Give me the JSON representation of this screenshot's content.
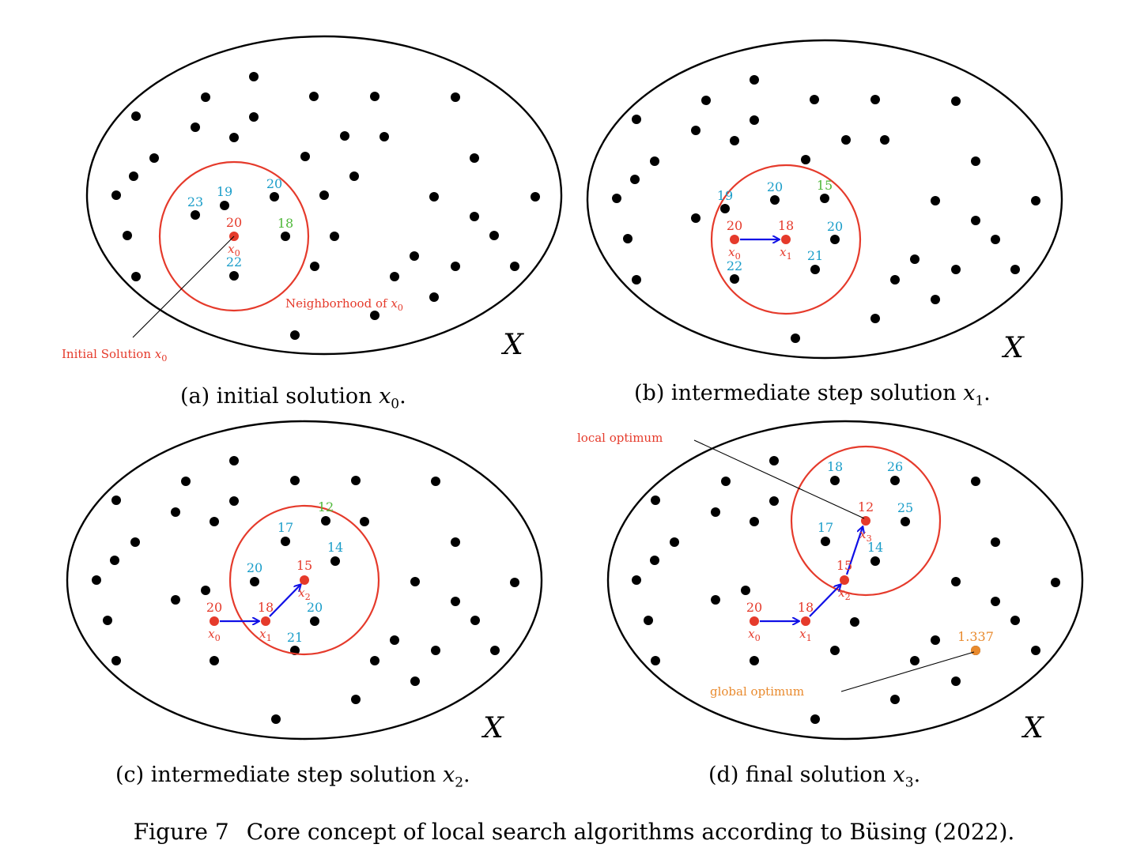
{
  "colors": {
    "dot": "#000000",
    "current": "#e53a2b",
    "neighbor_value": "#1a9dc9",
    "best_neighbor_value": "#4fb83a",
    "move_arrow": "#1010e6",
    "global_optimum": "#e98a2d",
    "outline": "#000000"
  },
  "panels": [
    {
      "id": "a",
      "space_label": "X",
      "caption": {
        "text": "(a) initial solution ",
        "var": "x",
        "sub": "0",
        "end": "."
      },
      "neighborhood_label": "Neighborhood of x0",
      "annotation": "Initial Solution x0",
      "current": {
        "value": "20",
        "name": "x0"
      },
      "neighbor_values": [
        "23",
        "19",
        "20",
        "18",
        "22"
      ],
      "best_neighbor": "18"
    },
    {
      "id": "b",
      "space_label": "X",
      "caption": {
        "text": "(b) intermediate step solution ",
        "var": "x",
        "sub": "1",
        "end": "."
      },
      "path": [
        {
          "value": "20",
          "name": "x0"
        },
        {
          "value": "18",
          "name": "x1"
        }
      ],
      "neighbor_values": [
        "19",
        "20",
        "15",
        "20",
        "22",
        "21"
      ],
      "best_neighbor": "15"
    },
    {
      "id": "c",
      "space_label": "X",
      "caption": {
        "text": "(c) intermediate step solution ",
        "var": "x",
        "sub": "2",
        "end": "."
      },
      "path": [
        {
          "value": "20",
          "name": "x0"
        },
        {
          "value": "18",
          "name": "x1"
        },
        {
          "value": "15",
          "name": "x2"
        }
      ],
      "neighbor_values": [
        "12",
        "17",
        "14",
        "20",
        "20",
        "21"
      ],
      "best_neighbor": "12"
    },
    {
      "id": "d",
      "space_label": "X",
      "caption": {
        "text": "(d) final solution ",
        "var": "x",
        "sub": "3",
        "end": "."
      },
      "path": [
        {
          "value": "20",
          "name": "x0"
        },
        {
          "value": "18",
          "name": "x1"
        },
        {
          "value": "15",
          "name": "x2"
        },
        {
          "value": "12",
          "name": "x3"
        }
      ],
      "neighbor_values": [
        "18",
        "26",
        "25",
        "17",
        "14"
      ],
      "local_optimum_label": "local optimum",
      "global_optimum": {
        "value": "1.337",
        "label": "global optimum"
      }
    }
  ],
  "figure_caption": {
    "number": "Figure 7",
    "text": "Core concept of local search algorithms according to Büsing (2022)."
  }
}
